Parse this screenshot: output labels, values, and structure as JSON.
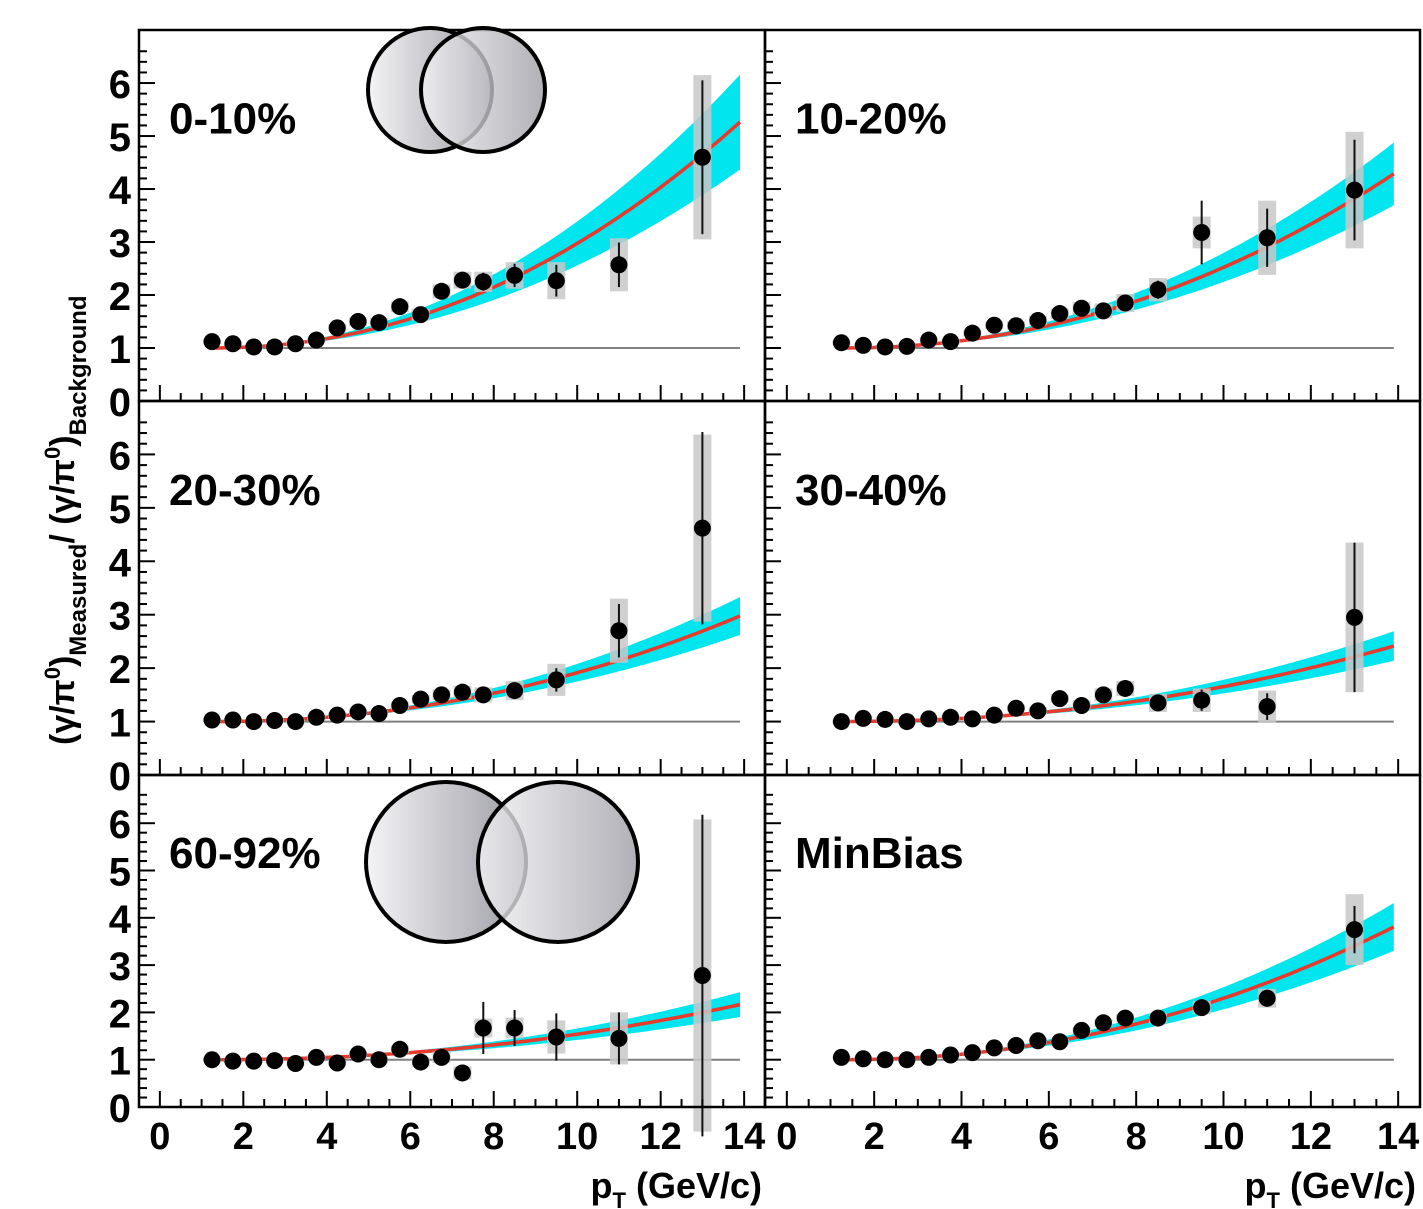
{
  "chart_data": {
    "type": "scatter",
    "y_axis_title": {
      "main": "(γ/π",
      "sup1": "0",
      "close1": ")",
      "sub1": "Measured",
      "slash": "/ (γ/π",
      "sup2": "0",
      "close2": ")",
      "sub2": "Background"
    },
    "x_axis_title": {
      "p": "p",
      "sub": "T",
      "rest": " (GeV/c)"
    },
    "xlim": [
      -0.5,
      14.5
    ],
    "ylim": [
      0,
      7
    ],
    "x_ticks": [
      "0",
      "2",
      "4",
      "6",
      "8",
      "10",
      "12",
      "14"
    ],
    "y_ticks": [
      "0",
      "1",
      "2",
      "3",
      "4",
      "5",
      "6"
    ],
    "colors": {
      "points": "#000000",
      "fit": "#e8392a",
      "band": "#00e5ee",
      "syst": "#c8c8c8",
      "reference": "#808080"
    },
    "panels": [
      {
        "label": "0-10%",
        "overlap_icon": "central-collision",
        "points": [
          {
            "x": 1.25,
            "y": 1.12
          },
          {
            "x": 1.75,
            "y": 1.08
          },
          {
            "x": 2.25,
            "y": 1.02
          },
          {
            "x": 2.75,
            "y": 1.02
          },
          {
            "x": 3.25,
            "y": 1.08
          },
          {
            "x": 3.75,
            "y": 1.15
          },
          {
            "x": 4.25,
            "y": 1.38
          },
          {
            "x": 4.75,
            "y": 1.5
          },
          {
            "x": 5.25,
            "y": 1.48
          },
          {
            "x": 5.75,
            "y": 1.78
          },
          {
            "x": 6.25,
            "y": 1.63
          },
          {
            "x": 6.75,
            "y": 2.07
          },
          {
            "x": 7.25,
            "y": 2.28
          },
          {
            "x": 7.75,
            "y": 2.25
          },
          {
            "x": 8.5,
            "y": 2.37
          },
          {
            "x": 9.5,
            "y": 2.27
          },
          {
            "x": 11.0,
            "y": 2.57
          },
          {
            "x": 13.0,
            "y": 4.6
          }
        ],
        "stat_err": [
          0.02,
          0.02,
          0.02,
          0.02,
          0.03,
          0.03,
          0.05,
          0.05,
          0.06,
          0.08,
          0.09,
          0.11,
          0.14,
          0.17,
          0.22,
          0.3,
          0.42,
          1.45
        ],
        "syst_err": [
          0.04,
          0.04,
          0.04,
          0.04,
          0.05,
          0.05,
          0.07,
          0.08,
          0.09,
          0.1,
          0.11,
          0.13,
          0.16,
          0.19,
          0.25,
          0.35,
          0.5,
          1.55
        ],
        "fit": {
          "a": 0.0205,
          "n": 2.1,
          "band": 0.14
        }
      },
      {
        "label": "10-20%",
        "overlap_icon": "",
        "points": [
          {
            "x": 1.25,
            "y": 1.1
          },
          {
            "x": 1.75,
            "y": 1.05
          },
          {
            "x": 2.25,
            "y": 1.02
          },
          {
            "x": 2.75,
            "y": 1.03
          },
          {
            "x": 3.25,
            "y": 1.15
          },
          {
            "x": 3.75,
            "y": 1.12
          },
          {
            "x": 4.25,
            "y": 1.28
          },
          {
            "x": 4.75,
            "y": 1.43
          },
          {
            "x": 5.25,
            "y": 1.42
          },
          {
            "x": 5.75,
            "y": 1.52
          },
          {
            "x": 6.25,
            "y": 1.65
          },
          {
            "x": 6.75,
            "y": 1.75
          },
          {
            "x": 7.25,
            "y": 1.7
          },
          {
            "x": 7.75,
            "y": 1.85
          },
          {
            "x": 8.5,
            "y": 2.1
          },
          {
            "x": 9.5,
            "y": 3.18
          },
          {
            "x": 11.0,
            "y": 3.08
          },
          {
            "x": 13.0,
            "y": 3.98
          }
        ],
        "stat_err": [
          0.02,
          0.02,
          0.02,
          0.02,
          0.03,
          0.03,
          0.04,
          0.05,
          0.05,
          0.06,
          0.07,
          0.08,
          0.1,
          0.13,
          0.17,
          0.6,
          0.55,
          0.95
        ],
        "syst_err": [
          0.04,
          0.04,
          0.04,
          0.04,
          0.05,
          0.05,
          0.06,
          0.07,
          0.08,
          0.09,
          0.1,
          0.12,
          0.14,
          0.17,
          0.22,
          0.3,
          0.7,
          1.1
        ],
        "fit": {
          "a": 0.0158,
          "n": 2.1,
          "band": 0.12
        }
      },
      {
        "label": "20-30%",
        "overlap_icon": "",
        "points": [
          {
            "x": 1.25,
            "y": 1.03
          },
          {
            "x": 1.75,
            "y": 1.03
          },
          {
            "x": 2.25,
            "y": 1.0
          },
          {
            "x": 2.75,
            "y": 1.02
          },
          {
            "x": 3.25,
            "y": 1.0
          },
          {
            "x": 3.75,
            "y": 1.08
          },
          {
            "x": 4.25,
            "y": 1.12
          },
          {
            "x": 4.75,
            "y": 1.18
          },
          {
            "x": 5.25,
            "y": 1.15
          },
          {
            "x": 5.75,
            "y": 1.3
          },
          {
            "x": 6.25,
            "y": 1.42
          },
          {
            "x": 6.75,
            "y": 1.5
          },
          {
            "x": 7.25,
            "y": 1.55
          },
          {
            "x": 7.75,
            "y": 1.5
          },
          {
            "x": 8.5,
            "y": 1.58
          },
          {
            "x": 9.5,
            "y": 1.78
          },
          {
            "x": 11.0,
            "y": 2.7
          },
          {
            "x": 13.0,
            "y": 4.62
          }
        ],
        "stat_err": [
          0.02,
          0.02,
          0.02,
          0.02,
          0.03,
          0.03,
          0.03,
          0.04,
          0.04,
          0.05,
          0.06,
          0.08,
          0.1,
          0.12,
          0.15,
          0.22,
          0.5,
          1.8
        ],
        "syst_err": [
          0.04,
          0.04,
          0.04,
          0.04,
          0.04,
          0.05,
          0.05,
          0.06,
          0.06,
          0.07,
          0.08,
          0.1,
          0.12,
          0.14,
          0.18,
          0.3,
          0.6,
          1.75
        ],
        "fit": {
          "a": 0.0095,
          "n": 2.1,
          "band": 0.12
        }
      },
      {
        "label": "30-40%",
        "overlap_icon": "",
        "points": [
          {
            "x": 1.25,
            "y": 1.0
          },
          {
            "x": 1.75,
            "y": 1.06
          },
          {
            "x": 2.25,
            "y": 1.04
          },
          {
            "x": 2.75,
            "y": 1.0
          },
          {
            "x": 3.25,
            "y": 1.05
          },
          {
            "x": 3.75,
            "y": 1.08
          },
          {
            "x": 4.25,
            "y": 1.05
          },
          {
            "x": 4.75,
            "y": 1.12
          },
          {
            "x": 5.25,
            "y": 1.25
          },
          {
            "x": 5.75,
            "y": 1.2
          },
          {
            "x": 6.25,
            "y": 1.43
          },
          {
            "x": 6.75,
            "y": 1.3
          },
          {
            "x": 7.25,
            "y": 1.5
          },
          {
            "x": 7.75,
            "y": 1.62
          },
          {
            "x": 8.5,
            "y": 1.35
          },
          {
            "x": 9.5,
            "y": 1.4
          },
          {
            "x": 11.0,
            "y": 1.28
          },
          {
            "x": 13.0,
            "y": 2.95
          }
        ],
        "stat_err": [
          0.02,
          0.02,
          0.02,
          0.02,
          0.03,
          0.03,
          0.03,
          0.04,
          0.05,
          0.05,
          0.06,
          0.08,
          0.1,
          0.13,
          0.15,
          0.2,
          0.25,
          1.4
        ],
        "syst_err": [
          0.04,
          0.04,
          0.04,
          0.04,
          0.04,
          0.05,
          0.05,
          0.06,
          0.06,
          0.07,
          0.08,
          0.1,
          0.12,
          0.14,
          0.17,
          0.22,
          0.3,
          1.4
        ],
        "fit": {
          "a": 0.0068,
          "n": 2.1,
          "band": 0.13
        }
      },
      {
        "label": "60-92%",
        "overlap_icon": "peripheral-collision",
        "points": [
          {
            "x": 1.25,
            "y": 1.0
          },
          {
            "x": 1.75,
            "y": 0.97
          },
          {
            "x": 2.25,
            "y": 0.97
          },
          {
            "x": 2.75,
            "y": 0.98
          },
          {
            "x": 3.25,
            "y": 0.92
          },
          {
            "x": 3.75,
            "y": 1.05
          },
          {
            "x": 4.25,
            "y": 0.93
          },
          {
            "x": 4.75,
            "y": 1.12
          },
          {
            "x": 5.25,
            "y": 1.0
          },
          {
            "x": 5.75,
            "y": 1.22
          },
          {
            "x": 6.25,
            "y": 0.95
          },
          {
            "x": 6.75,
            "y": 1.05
          },
          {
            "x": 7.25,
            "y": 0.72
          },
          {
            "x": 7.75,
            "y": 1.67
          },
          {
            "x": 8.5,
            "y": 1.67
          },
          {
            "x": 9.5,
            "y": 1.48
          },
          {
            "x": 11.0,
            "y": 1.45
          },
          {
            "x": 13.0,
            "y": 2.78
          }
        ],
        "stat_err": [
          0.03,
          0.03,
          0.03,
          0.03,
          0.04,
          0.05,
          0.05,
          0.06,
          0.07,
          0.08,
          0.1,
          0.12,
          0.15,
          0.55,
          0.38,
          0.5,
          0.55,
          3.4
        ],
        "syst_err": [
          0.04,
          0.04,
          0.04,
          0.04,
          0.05,
          0.05,
          0.06,
          0.06,
          0.07,
          0.08,
          0.1,
          0.12,
          0.14,
          0.2,
          0.22,
          0.35,
          0.55,
          3.3
        ],
        "fit": {
          "a": 0.0056,
          "n": 2.1,
          "band": 0.15
        }
      },
      {
        "label": "MinBias",
        "overlap_icon": "",
        "points": [
          {
            "x": 1.25,
            "y": 1.05
          },
          {
            "x": 1.75,
            "y": 1.02
          },
          {
            "x": 2.25,
            "y": 1.0
          },
          {
            "x": 2.75,
            "y": 1.0
          },
          {
            "x": 3.25,
            "y": 1.05
          },
          {
            "x": 3.75,
            "y": 1.1
          },
          {
            "x": 4.25,
            "y": 1.15
          },
          {
            "x": 4.75,
            "y": 1.25
          },
          {
            "x": 5.25,
            "y": 1.3
          },
          {
            "x": 5.75,
            "y": 1.4
          },
          {
            "x": 6.25,
            "y": 1.38
          },
          {
            "x": 6.75,
            "y": 1.62
          },
          {
            "x": 7.25,
            "y": 1.78
          },
          {
            "x": 7.75,
            "y": 1.88
          },
          {
            "x": 8.5,
            "y": 1.88
          },
          {
            "x": 9.5,
            "y": 2.1
          },
          {
            "x": 11.0,
            "y": 2.3
          },
          {
            "x": 13.0,
            "y": 3.75
          }
        ],
        "stat_err": [
          0.01,
          0.01,
          0.01,
          0.01,
          0.02,
          0.02,
          0.02,
          0.03,
          0.03,
          0.03,
          0.04,
          0.05,
          0.06,
          0.07,
          0.09,
          0.12,
          0.18,
          0.5
        ],
        "syst_err": [
          0.03,
          0.03,
          0.03,
          0.03,
          0.04,
          0.04,
          0.04,
          0.05,
          0.05,
          0.06,
          0.06,
          0.07,
          0.08,
          0.09,
          0.11,
          0.14,
          0.2,
          0.75
        ],
        "fit": {
          "a": 0.0135,
          "n": 2.1,
          "band": 0.12
        }
      }
    ]
  }
}
